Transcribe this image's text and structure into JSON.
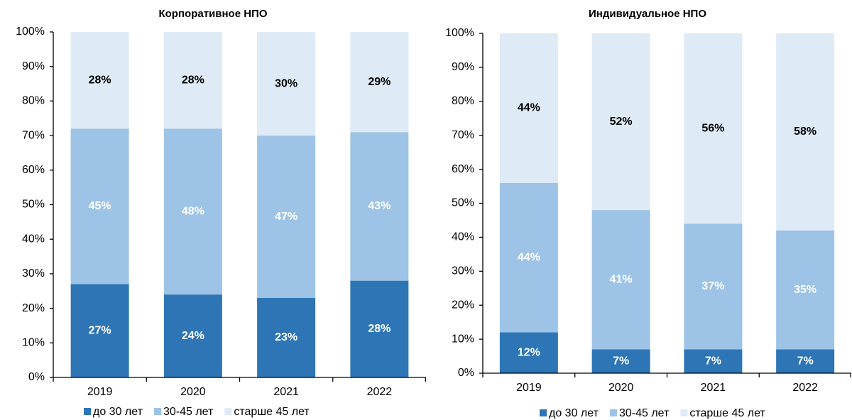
{
  "chart_data": [
    {
      "type": "stacked_bar",
      "title": "Корпоративное  НПО",
      "categories": [
        "2019",
        "2020",
        "2021",
        "2022"
      ],
      "series": [
        {
          "name": "до 30 лет",
          "color": "#2e75b6",
          "label_color": "#ffffff",
          "values": [
            27,
            24,
            23,
            28
          ],
          "value_labels": [
            "27%",
            "24%",
            "23%",
            "28%"
          ]
        },
        {
          "name": "30-45 лет",
          "color": "#9dc3e6",
          "label_color": "#ffffff",
          "values": [
            45,
            48,
            47,
            43
          ],
          "value_labels": [
            "45%",
            "48%",
            "47%",
            "43%"
          ]
        },
        {
          "name": "старше 45 лет",
          "color": "#deebf7",
          "label_color": "#000000",
          "values": [
            28,
            28,
            30,
            29
          ],
          "value_labels": [
            "28%",
            "28%",
            "30%",
            "29%"
          ]
        }
      ],
      "ylim": [
        0,
        100
      ],
      "yticks": [
        {
          "value": 0,
          "label": "0%"
        },
        {
          "value": 10,
          "label": "10%"
        },
        {
          "value": 20,
          "label": "20%"
        },
        {
          "value": 30,
          "label": "30%"
        },
        {
          "value": 40,
          "label": "40%"
        },
        {
          "value": 50,
          "label": "50%"
        },
        {
          "value": 60,
          "label": "60%"
        },
        {
          "value": 70,
          "label": "70%"
        },
        {
          "value": 80,
          "label": "80%"
        },
        {
          "value": 90,
          "label": "90%"
        },
        {
          "value": 100,
          "label": "100%"
        }
      ],
      "grid": false,
      "legend": "bottom"
    },
    {
      "type": "stacked_bar",
      "title": "Индивидуальное НПО",
      "categories": [
        "2019",
        "2020",
        "2021",
        "2022"
      ],
      "series": [
        {
          "name": "до 30 лет",
          "color": "#2e75b6",
          "label_color": "#ffffff",
          "values": [
            12,
            7,
            7,
            7
          ],
          "value_labels": [
            "12%",
            "7%",
            "7%",
            "7%"
          ]
        },
        {
          "name": "30-45 лет",
          "color": "#9dc3e6",
          "label_color": "#ffffff",
          "values": [
            44,
            41,
            37,
            35
          ],
          "value_labels": [
            "44%",
            "41%",
            "37%",
            "35%"
          ]
        },
        {
          "name": "старше 45 лет",
          "color": "#deebf7",
          "label_color": "#000000",
          "values": [
            44,
            52,
            56,
            58
          ],
          "value_labels": [
            "44%",
            "52%",
            "56%",
            "58%"
          ]
        }
      ],
      "ylim": [
        0,
        100
      ],
      "yticks": [
        {
          "value": 0,
          "label": "0%"
        },
        {
          "value": 10,
          "label": "10%"
        },
        {
          "value": 20,
          "label": "20%"
        },
        {
          "value": 30,
          "label": "30%"
        },
        {
          "value": 40,
          "label": "40%"
        },
        {
          "value": 50,
          "label": "50%"
        },
        {
          "value": 60,
          "label": "60%"
        },
        {
          "value": 70,
          "label": "70%"
        },
        {
          "value": 80,
          "label": "80%"
        },
        {
          "value": 90,
          "label": "90%"
        },
        {
          "value": 100,
          "label": "100%"
        }
      ],
      "grid": false,
      "legend": "bottom"
    }
  ]
}
